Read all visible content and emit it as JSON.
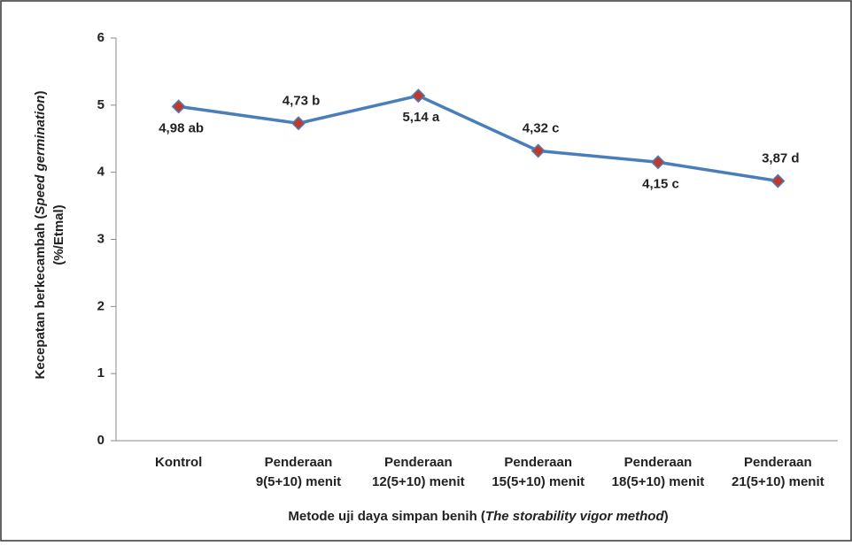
{
  "chart_data": {
    "type": "line",
    "categories": [
      [
        "Kontrol"
      ],
      [
        "Penderaan",
        "9(5+10) menit"
      ],
      [
        "Penderaan",
        "12(5+10) menit"
      ],
      [
        "Penderaan",
        "15(5+10) menit"
      ],
      [
        "Penderaan",
        "18(5+10) menit"
      ],
      [
        "Penderaan",
        "21(5+10) menit"
      ]
    ],
    "series": [
      {
        "name": "Kecepatan berkecambah",
        "color": "#4a7ebb",
        "marker_color": "#c0392b",
        "values": [
          4.98,
          4.73,
          5.14,
          4.32,
          4.15,
          3.87
        ],
        "value_labels": [
          "4,98 ab",
          "4,73 b",
          "5,14 a",
          "4,32 c",
          "4,15 c",
          "3,87 d"
        ],
        "value_label_positions": [
          "below",
          "above",
          "below",
          "above",
          "below",
          "above"
        ]
      }
    ],
    "ylim": [
      0,
      6
    ],
    "yticks": [
      0,
      1,
      2,
      3,
      4,
      5,
      6
    ],
    "grid": false,
    "x_label": [
      "Metode uji daya simpan benih (",
      "The storability vigor method",
      ")"
    ],
    "y_label": [
      [
        "Kecepatan berkecambah (",
        "Speed germination",
        ")"
      ],
      [
        "(%/Etmal)"
      ]
    ]
  }
}
